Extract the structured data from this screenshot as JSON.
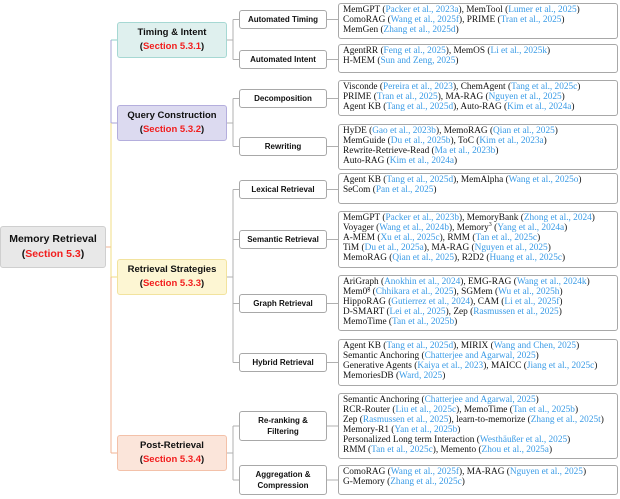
{
  "root": {
    "title": "Memory Retrieval",
    "section": "Section 5.3"
  },
  "colors": {
    "section": "#f21d1d",
    "citation": "#3a9be6"
  },
  "categories": [
    {
      "title": "Timing & Intent",
      "section": "Section 5.3.1",
      "bg": "#dff0ee",
      "border": "#a6d8d3",
      "line": "#8fcfc8"
    },
    {
      "title": "Query Construction",
      "section": "Section 5.3.2",
      "bg": "#dcdaf0",
      "border": "#b4aedd",
      "line": "#a9a3d6"
    },
    {
      "title": "Retrieval Strategies",
      "section": "Section 5.3.3",
      "bg": "#fdf6d3",
      "border": "#f2e39e",
      "line": "#f0dc86"
    },
    {
      "title": "Post-Retrieval",
      "section": "Section 5.3.4",
      "bg": "#fbe5da",
      "border": "#f3c1a9",
      "line": "#f2b393"
    }
  ],
  "subcategories": [
    {
      "label": "Automated Timing",
      "items": [
        [
          {
            "n": "MemGPT",
            "c": "Packer et al., 2023a"
          },
          {
            "n": "MemTool",
            "c": "Lumer et al., 2025"
          }
        ],
        [
          {
            "n": "ComoRAG",
            "c": "Wang et al., 2025f"
          },
          {
            "n": "PRIME",
            "c": "Tran et al., 2025"
          }
        ],
        [
          {
            "n": "MemGen",
            "c": "Zhang et al., 2025d"
          }
        ]
      ]
    },
    {
      "label": "Automated Intent",
      "items": [
        [
          {
            "n": "AgentRR",
            "c": "Feng et al., 2025"
          },
          {
            "n": "MemOS",
            "c": "Li et al., 2025k"
          }
        ],
        [
          {
            "n": "H-MEM",
            "c": "Sun and Zeng, 2025"
          }
        ]
      ]
    },
    {
      "label": "Decomposition",
      "items": [
        [
          {
            "n": "Visconde",
            "c": "Pereira et al., 2023"
          },
          {
            "n": "ChemAgent",
            "c": "Tang et al., 2025c"
          }
        ],
        [
          {
            "n": "PRIME",
            "c": "Tran et al., 2025"
          },
          {
            "n": "MA-RAG",
            "c": "Nguyen et al., 2025"
          }
        ],
        [
          {
            "n": "Agent KB",
            "c": "Tang et al., 2025d"
          },
          {
            "n": "Auto-RAG",
            "c": "Kim et al., 2024a"
          }
        ]
      ]
    },
    {
      "label": "Rewriting",
      "items": [
        [
          {
            "n": "HyDE",
            "c": "Gao et al., 2023b"
          },
          {
            "n": "MemoRAG",
            "c": "Qian et al., 2025"
          }
        ],
        [
          {
            "n": "MemGuide",
            "c": "Du et al., 2025b"
          },
          {
            "n": "ToC",
            "c": "Kim et al., 2023a"
          }
        ],
        [
          {
            "n": "Rewrite-Retrieve-Read",
            "c": "Ma et al., 2023b"
          }
        ],
        [
          {
            "n": "Auto-RAG",
            "c": "Kim et al., 2024a"
          }
        ]
      ]
    },
    {
      "label": "Lexical Retrieval",
      "items": [
        [
          {
            "n": "Agent KB",
            "c": "Tang et al., 2025d"
          },
          {
            "n": "MemAlpha",
            "c": "Wang et al., 2025o"
          }
        ],
        [
          {
            "n": "SeCom",
            "c": "Pan et al., 2025"
          }
        ]
      ]
    },
    {
      "label": "Semantic Retrieval",
      "items": [
        [
          {
            "n": "MemGPT",
            "c": "Packer et al., 2023b"
          },
          {
            "n": "MemoryBank",
            "c": "Zhong et al., 2024"
          }
        ],
        [
          {
            "n": "Voyager",
            "c": "Wang et al., 2024b"
          },
          {
            "n": "Memory",
            "sup": "3",
            "c": "Yang et al., 2024a"
          }
        ],
        [
          {
            "n": "A-MEM",
            "c": "Xu et al., 2025c"
          },
          {
            "n": "RMM",
            "c": "Tan et al., 2025c"
          }
        ],
        [
          {
            "n": "TiM",
            "c": "Du et al., 2025a"
          },
          {
            "n": "MA-RAG",
            "c": "Nguyen et al., 2025"
          }
        ],
        [
          {
            "n": "MemoRAG",
            "c": "Qian et al., 2025"
          },
          {
            "n": "R2D2",
            "c": "Huang et al., 2025c"
          }
        ]
      ]
    },
    {
      "label": "Graph Retrieval",
      "items": [
        [
          {
            "n": "AriGraph",
            "c": "Anokhin et al., 2024"
          },
          {
            "n": "EMG-RAG",
            "c": "Wang et al., 2024k"
          }
        ],
        [
          {
            "n": "Mem0",
            "sup": "g",
            "c": "Chhikara et al., 2025"
          },
          {
            "n": "SGMem",
            "c": "Wu et al., 2025h"
          }
        ],
        [
          {
            "n": "HippoRAG",
            "c": "Gutierrez et al., 2024"
          },
          {
            "n": "CAM",
            "c": "Li et al., 2025f"
          }
        ],
        [
          {
            "n": "D-SMART",
            "c": "Lei et al., 2025"
          },
          {
            "n": "Zep",
            "c": "Rasmussen et al., 2025"
          }
        ],
        [
          {
            "n": "MemoTime",
            "c": "Tan et al., 2025b"
          }
        ]
      ]
    },
    {
      "label": "Hybrid Retrieval",
      "items": [
        [
          {
            "n": "Agent KB",
            "c": "Tang et al., 2025d"
          },
          {
            "n": "MIRIX",
            "c": "Wang and Chen, 2025"
          }
        ],
        [
          {
            "n": "Semantic Anchoring",
            "c": "Chatterjee and Agarwal, 2025"
          }
        ],
        [
          {
            "n": "Generative Agents",
            "c": "Kaiya et al., 2023"
          },
          {
            "n": "MAICC",
            "c": "Jiang et al., 2025c"
          }
        ],
        [
          {
            "n": "MemoriesDB",
            "c": "Ward, 2025"
          }
        ]
      ]
    },
    {
      "label": "Re-ranking & Filtering",
      "items": [
        [
          {
            "n": "Semantic Anchoring",
            "c": "Chatterjee and Agarwal, 2025"
          }
        ],
        [
          {
            "n": "RCR-Router",
            "c": "Liu et al., 2025c"
          },
          {
            "n": "MemoTime",
            "c": "Tan et al., 2025b"
          }
        ],
        [
          {
            "n": "Zep",
            "c": "Rasmussen et al., 2025"
          },
          {
            "n": "learn-to-memorize",
            "c": "Zhang et al., 2025t"
          }
        ],
        [
          {
            "n": "Memory-R1",
            "c": "Yan et al., 2025b"
          }
        ],
        [
          {
            "n": "Personalized Long term Interaction",
            "c": "Westhäußer et al., 2025"
          }
        ],
        [
          {
            "n": "RMM",
            "c": "Tan et al., 2025c"
          },
          {
            "n": "Memento",
            "c": "Zhou et al., 2025a"
          }
        ]
      ]
    },
    {
      "label": "Aggregation & Compression",
      "items": [
        [
          {
            "n": "ComoRAG",
            "c": "Wang et al., 2025f"
          },
          {
            "n": "MA-RAG",
            "c": "Nguyen et al., 2025"
          }
        ],
        [
          {
            "n": "G-Memory",
            "c": "Zhang et al., 2025c"
          }
        ]
      ]
    }
  ]
}
